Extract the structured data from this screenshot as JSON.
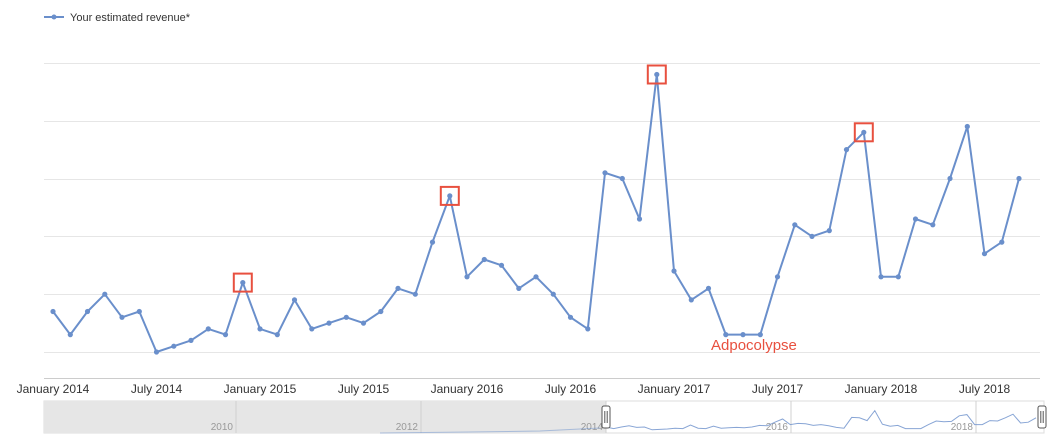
{
  "chart_data": {
    "type": "line",
    "legend": {
      "label": "Your estimated revenue*",
      "position": "top-left"
    },
    "colors": {
      "series": "#6a8fcb",
      "highlight": "#e8503f",
      "grid": "#e6e6e6",
      "navigator_bg": "#e6e6e6"
    },
    "x_tick_labels": [
      "January 2014",
      "July 2014",
      "January 2015",
      "July 2015",
      "January 2016",
      "July 2016",
      "January 2017",
      "July 2017",
      "January 2018",
      "July 2018"
    ],
    "x": [
      "2014-01",
      "2014-02",
      "2014-03",
      "2014-04",
      "2014-05",
      "2014-06",
      "2014-07",
      "2014-08",
      "2014-09",
      "2014-10",
      "2014-11",
      "2014-12",
      "2015-01",
      "2015-02",
      "2015-03",
      "2015-04",
      "2015-05",
      "2015-06",
      "2015-07",
      "2015-08",
      "2015-09",
      "2015-10",
      "2015-11",
      "2015-12",
      "2016-01",
      "2016-02",
      "2016-03",
      "2016-04",
      "2016-05",
      "2016-06",
      "2016-07",
      "2016-08",
      "2016-09",
      "2016-10",
      "2016-11",
      "2016-12",
      "2017-01",
      "2017-02",
      "2017-03",
      "2017-04",
      "2017-05",
      "2017-06",
      "2017-07",
      "2017-08",
      "2017-09",
      "2017-10",
      "2017-11",
      "2017-12",
      "2018-01",
      "2018-02",
      "2018-03",
      "2018-04",
      "2018-05",
      "2018-06",
      "2018-07",
      "2018-08",
      "2018-09"
    ],
    "values": [
      3.0,
      2.6,
      3.0,
      3.3,
      2.9,
      3.0,
      2.3,
      2.4,
      2.5,
      2.7,
      2.6,
      3.5,
      2.7,
      2.6,
      3.2,
      2.7,
      2.8,
      2.9,
      2.8,
      3.0,
      3.4,
      3.3,
      4.2,
      5.0,
      3.6,
      3.9,
      3.8,
      3.4,
      3.6,
      3.3,
      2.9,
      2.7,
      5.4,
      5.3,
      4.6,
      7.1,
      3.7,
      3.2,
      3.4,
      2.6,
      2.6,
      2.6,
      3.6,
      4.5,
      4.3,
      4.4,
      5.8,
      6.1,
      3.6,
      3.6,
      4.6,
      4.5,
      5.3,
      6.2,
      4.0,
      4.2,
      5.3
    ],
    "ylim": [
      1.85,
      7.8
    ],
    "y_gridlines": [
      2.3,
      3.3,
      4.3,
      5.3,
      6.3,
      7.3
    ],
    "y_tick_labels": [],
    "grid": true,
    "highlighted_points": [
      "2014-12",
      "2015-12",
      "2016-12",
      "2017-12"
    ],
    "annotation": {
      "text": "Adpocolypse",
      "x": "2017-04"
    }
  },
  "navigator": {
    "year_labels": [
      "2010",
      "2012",
      "2014",
      "2016",
      "2018"
    ],
    "selection_start": "2014-01",
    "selection_end": "2018-09"
  }
}
